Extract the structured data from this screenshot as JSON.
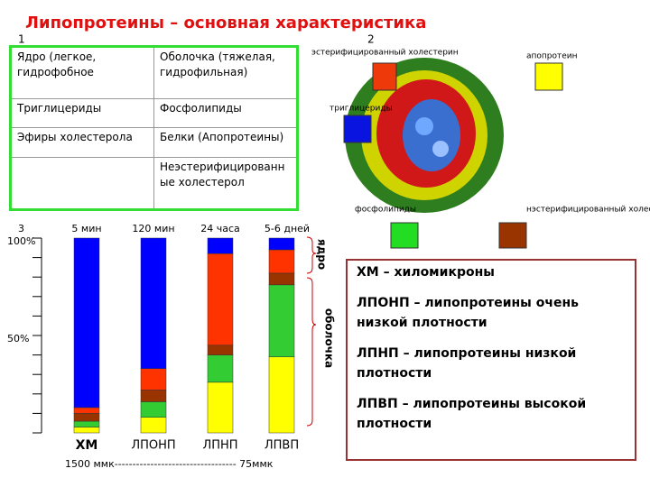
{
  "title": "Липопротеины – основная характеристика",
  "panel_numbers": [
    "1",
    "2",
    "3"
  ],
  "table": {
    "rows": [
      [
        "Ядро (легкое, гидрофобное",
        "Оболочка (тяжелая, гидрофильная)"
      ],
      [
        "Триглицериды",
        "Фосфолипиды"
      ],
      [
        "Эфиры холестерола",
        "Белки (Апопротеины)"
      ],
      [
        null,
        "Неэстерифицированные холестерол"
      ]
    ]
  },
  "diagram": {
    "labels": [
      "эстерифицированный холестерин",
      "апопротеин",
      "триглицериды",
      "фосфолипиды",
      "нэстерифицированный холестерин"
    ]
  },
  "chart_data": {
    "type": "stacked_bar",
    "categories": [
      "ХМ",
      "ЛПОНП",
      "ЛПНП",
      "ЛПВП"
    ],
    "top_labels": [
      "5 мин",
      "120 мин",
      "24 часа",
      "5-6 дней"
    ],
    "series": [
      {
        "color": "#ffff00",
        "values": [
          3,
          8,
          26,
          39
        ]
      },
      {
        "color": "#33cc33",
        "values": [
          3,
          8,
          14,
          37
        ]
      },
      {
        "color": "#993300",
        "values": [
          4,
          6,
          5,
          6
        ]
      },
      {
        "color": "#ff3300",
        "values": [
          3,
          11,
          47,
          12
        ]
      },
      {
        "color": "#0000ff",
        "values": [
          87,
          67,
          8,
          6
        ]
      }
    ],
    "ylim": [
      0,
      100
    ],
    "yticks": [
      {
        "value": 100,
        "label": "100%"
      },
      {
        "value": 50,
        "label": "50%"
      }
    ],
    "yminor_ticks": [
      0,
      10,
      20,
      30,
      40,
      60,
      70,
      80,
      90
    ],
    "side_labels": [
      "ядро",
      "оболочка"
    ],
    "footer": "1500 ммк---------------------------------- 75ммк"
  },
  "legend": [
    "ХМ – хиломикроны",
    "ЛПОНП – липопротеины очень низкой плотности",
    "ЛПНП – липопротеины низкой плотности",
    "ЛПВП – липопротеины высокой плотности"
  ]
}
